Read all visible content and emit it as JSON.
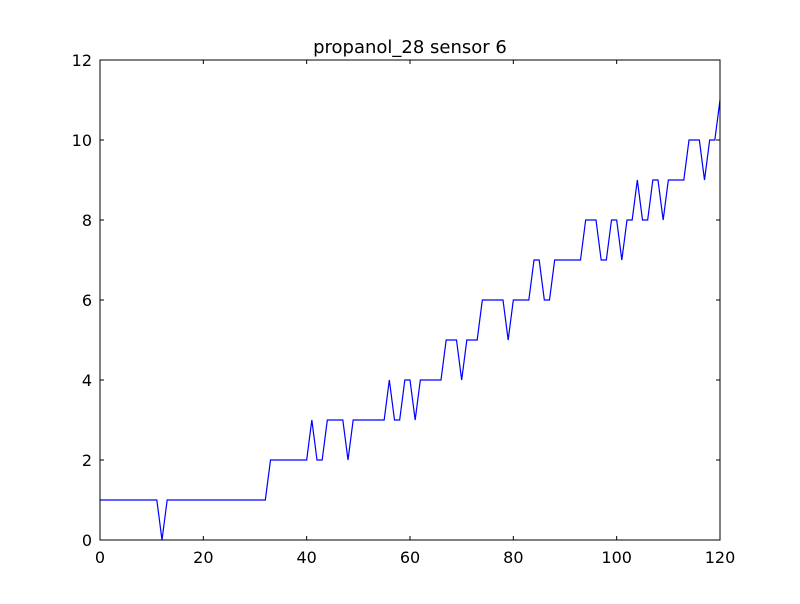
{
  "chart_data": {
    "type": "line",
    "title": "propanol_28 sensor 6",
    "xlabel": "",
    "ylabel": "",
    "xlim": [
      0,
      120
    ],
    "ylim": [
      0,
      12
    ],
    "xticks": [
      0,
      20,
      40,
      60,
      80,
      100,
      120
    ],
    "yticks": [
      0,
      2,
      4,
      6,
      8,
      10,
      12
    ],
    "grid": false,
    "legend": "none",
    "series": [
      {
        "color": "#0000ff",
        "x": [
          0,
          1,
          2,
          3,
          4,
          5,
          6,
          7,
          8,
          9,
          10,
          11,
          12,
          13,
          14,
          15,
          16,
          17,
          18,
          19,
          20,
          21,
          22,
          23,
          24,
          25,
          26,
          27,
          28,
          29,
          30,
          31,
          32,
          33,
          34,
          35,
          36,
          37,
          38,
          39,
          40,
          41,
          42,
          43,
          44,
          45,
          46,
          47,
          48,
          49,
          50,
          51,
          52,
          53,
          54,
          55,
          56,
          57,
          58,
          59,
          60,
          61,
          62,
          63,
          64,
          65,
          66,
          67,
          68,
          69,
          70,
          71,
          72,
          73,
          74,
          75,
          76,
          77,
          78,
          79,
          80,
          81,
          82,
          83,
          84,
          85,
          86,
          87,
          88,
          89,
          90,
          91,
          92,
          93,
          94,
          95,
          96,
          97,
          98,
          99,
          100,
          101,
          102,
          103,
          104,
          105,
          106,
          107,
          108,
          109,
          110,
          111,
          112,
          113,
          114,
          115,
          116,
          117,
          118,
          119,
          120
        ],
        "y": [
          1,
          1,
          1,
          1,
          1,
          1,
          1,
          1,
          1,
          1,
          1,
          1,
          0,
          1,
          1,
          1,
          1,
          1,
          1,
          1,
          1,
          1,
          1,
          1,
          1,
          1,
          1,
          1,
          1,
          1,
          1,
          1,
          1,
          2,
          2,
          2,
          2,
          2,
          2,
          2,
          2,
          3,
          2,
          2,
          3,
          3,
          3,
          3,
          2,
          3,
          3,
          3,
          3,
          3,
          3,
          3,
          4,
          3,
          3,
          4,
          4,
          3,
          4,
          4,
          4,
          4,
          4,
          5,
          5,
          5,
          4,
          5,
          5,
          5,
          6,
          6,
          6,
          6,
          6,
          5,
          6,
          6,
          6,
          6,
          7,
          7,
          6,
          6,
          7,
          7,
          7,
          7,
          7,
          7,
          8,
          8,
          8,
          7,
          7,
          8,
          8,
          7,
          8,
          8,
          9,
          8,
          8,
          9,
          9,
          8,
          9,
          9,
          9,
          9,
          10,
          10,
          10,
          9,
          10,
          10,
          11
        ]
      }
    ]
  }
}
